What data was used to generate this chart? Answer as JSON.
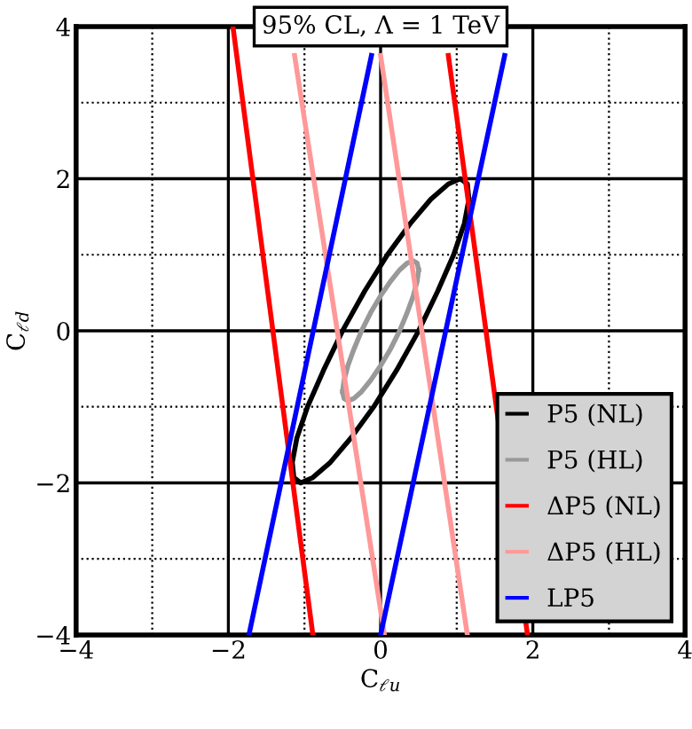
{
  "chart_data": {
    "type": "line",
    "title": "95% CL, Λ = 1 TeV",
    "xlabel": "C$_{ℓu}$",
    "ylabel": "C$_{ℓd}$",
    "xlim": [
      -4,
      4
    ],
    "ylim": [
      -4,
      4
    ],
    "xticks": [
      -4,
      {
        "value": -3,
        "label": null
      },
      -2,
      {
        "value": -1,
        "label": null
      },
      0,
      {
        "value": 1,
        "label": null
      },
      2,
      {
        "value": 3,
        "label": null
      },
      4
    ],
    "yticks": [
      -4,
      {
        "value": -3,
        "label": null
      },
      -2,
      {
        "value": -1,
        "label": null
      },
      0,
      {
        "value": 1,
        "label": null
      },
      2,
      {
        "value": 3,
        "label": null
      },
      4
    ],
    "grid": true,
    "legend": "bottom right",
    "marker": "none",
    "line_style": "solid",
    "series": [
      {
        "name": "P5 (NL)",
        "color": "#000000",
        "x": [
          -1.16,
          -1.1,
          -0.96,
          -0.75,
          -0.5,
          -0.21,
          0.09,
          0.39,
          0.66,
          0.89,
          1.05,
          1.14,
          1.16,
          null,
          1.16,
          1.1,
          0.96,
          0.75,
          0.5,
          0.21,
          -0.09,
          -0.39,
          -0.66,
          -0.89,
          -1.05,
          -1.14,
          -1.16
        ],
        "values": [
          -1.73,
          -1.41,
          -1.0,
          -0.52,
          0,
          0.52,
          1.0,
          1.41,
          1.73,
          1.93,
          2,
          1.93,
          1.73,
          null,
          1.73,
          1.41,
          1.0,
          0.52,
          0,
          -0.52,
          -1.0,
          -1.41,
          -1.73,
          -1.93,
          -2,
          -1.93,
          -1.73
        ]
      },
      {
        "name": "P5 (HL)",
        "color": "#999999",
        "x": [
          -0.5,
          -0.48,
          -0.43,
          -0.35,
          -0.25,
          -0.13,
          0.0,
          0.13,
          0.25,
          0.35,
          0.43,
          0.48,
          0.5,
          null,
          0.5,
          0.48,
          0.43,
          0.35,
          0.25,
          0.13,
          0.0,
          -0.13,
          -0.25,
          -0.35,
          -0.43,
          -0.48,
          -0.5
        ],
        "values": [
          -0.8,
          -0.65,
          -0.46,
          -0.24,
          0,
          0.24,
          0.46,
          0.65,
          0.8,
          0.89,
          0.92,
          0.89,
          0.8,
          null,
          0.8,
          0.65,
          0.46,
          0.24,
          0,
          -0.24,
          -0.46,
          -0.65,
          -0.8,
          -0.89,
          -0.92,
          -0.89,
          -0.8
        ]
      },
      {
        "name": "ΔP5 (NL)",
        "color": "#ff0000",
        "x": [
          -1.94,
          -0.89,
          null,
          0.89,
          1.93
        ],
        "values": [
          4,
          -4,
          null,
          3.62,
          -4
        ]
      },
      {
        "name": "ΔP5 (HL)",
        "color": "#ff9999",
        "x": [
          -1.13,
          0.05,
          null,
          0.0,
          1.14
        ],
        "values": [
          3.62,
          -4,
          null,
          3.62,
          -4
        ]
      },
      {
        "name": "LP5",
        "color": "#0000ff",
        "x": [
          -0.12,
          -1.73,
          null,
          1.63,
          0.0
        ],
        "values": [
          3.62,
          -4,
          null,
          3.62,
          -4
        ]
      }
    ]
  }
}
